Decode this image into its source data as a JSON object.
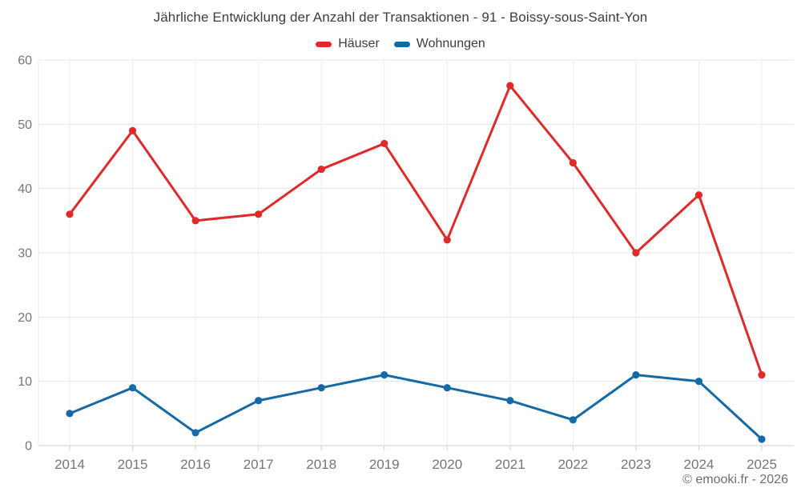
{
  "chart_data": {
    "type": "line",
    "title": "Jährliche Entwicklung der Anzahl der Transaktionen - 91 - Boissy-sous-Saint-Yon",
    "categories": [
      "2014",
      "2015",
      "2016",
      "2017",
      "2018",
      "2019",
      "2020",
      "2021",
      "2022",
      "2023",
      "2024",
      "2025"
    ],
    "series": [
      {
        "name": "Häuser",
        "color": "#e02a2a",
        "values": [
          36,
          49,
          35,
          36,
          43,
          47,
          32,
          56,
          44,
          30,
          39,
          11
        ]
      },
      {
        "name": "Wohnungen",
        "color": "#1569a5",
        "values": [
          5,
          9,
          2,
          7,
          9,
          11,
          9,
          7,
          4,
          11,
          10,
          1
        ]
      }
    ],
    "xlabel": "",
    "ylabel": "",
    "ylim": [
      0,
      60
    ],
    "y_tick_step": 10,
    "grid": true,
    "legend_position": "top",
    "marker": "circle"
  },
  "footer": {
    "copyright": "© emooki.fr - 2026"
  }
}
